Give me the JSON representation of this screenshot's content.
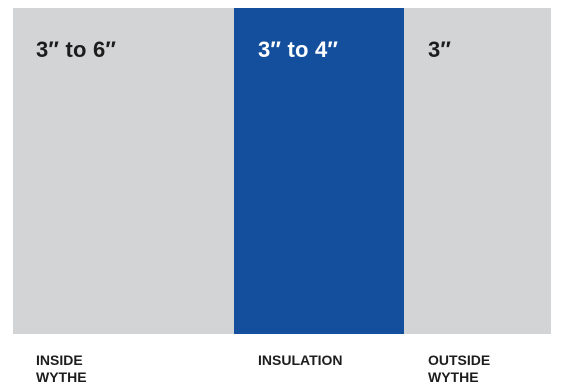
{
  "panels": {
    "inside": {
      "dimension": "3″ to 6″",
      "label_line1": "INSIDE",
      "label_line2": "WYTHE",
      "color": "#d3d4d6"
    },
    "insulation": {
      "dimension": "3″ to 4″",
      "label_line1": "INSULATION",
      "color": "#144f9d"
    },
    "outside": {
      "dimension": "3″",
      "label_line1": "OUTSIDE",
      "label_line2": "WYTHE",
      "color": "#d3d4d6"
    }
  },
  "colors": {
    "text_dark": "#1d1d1d",
    "text_light": "#ffffff"
  }
}
